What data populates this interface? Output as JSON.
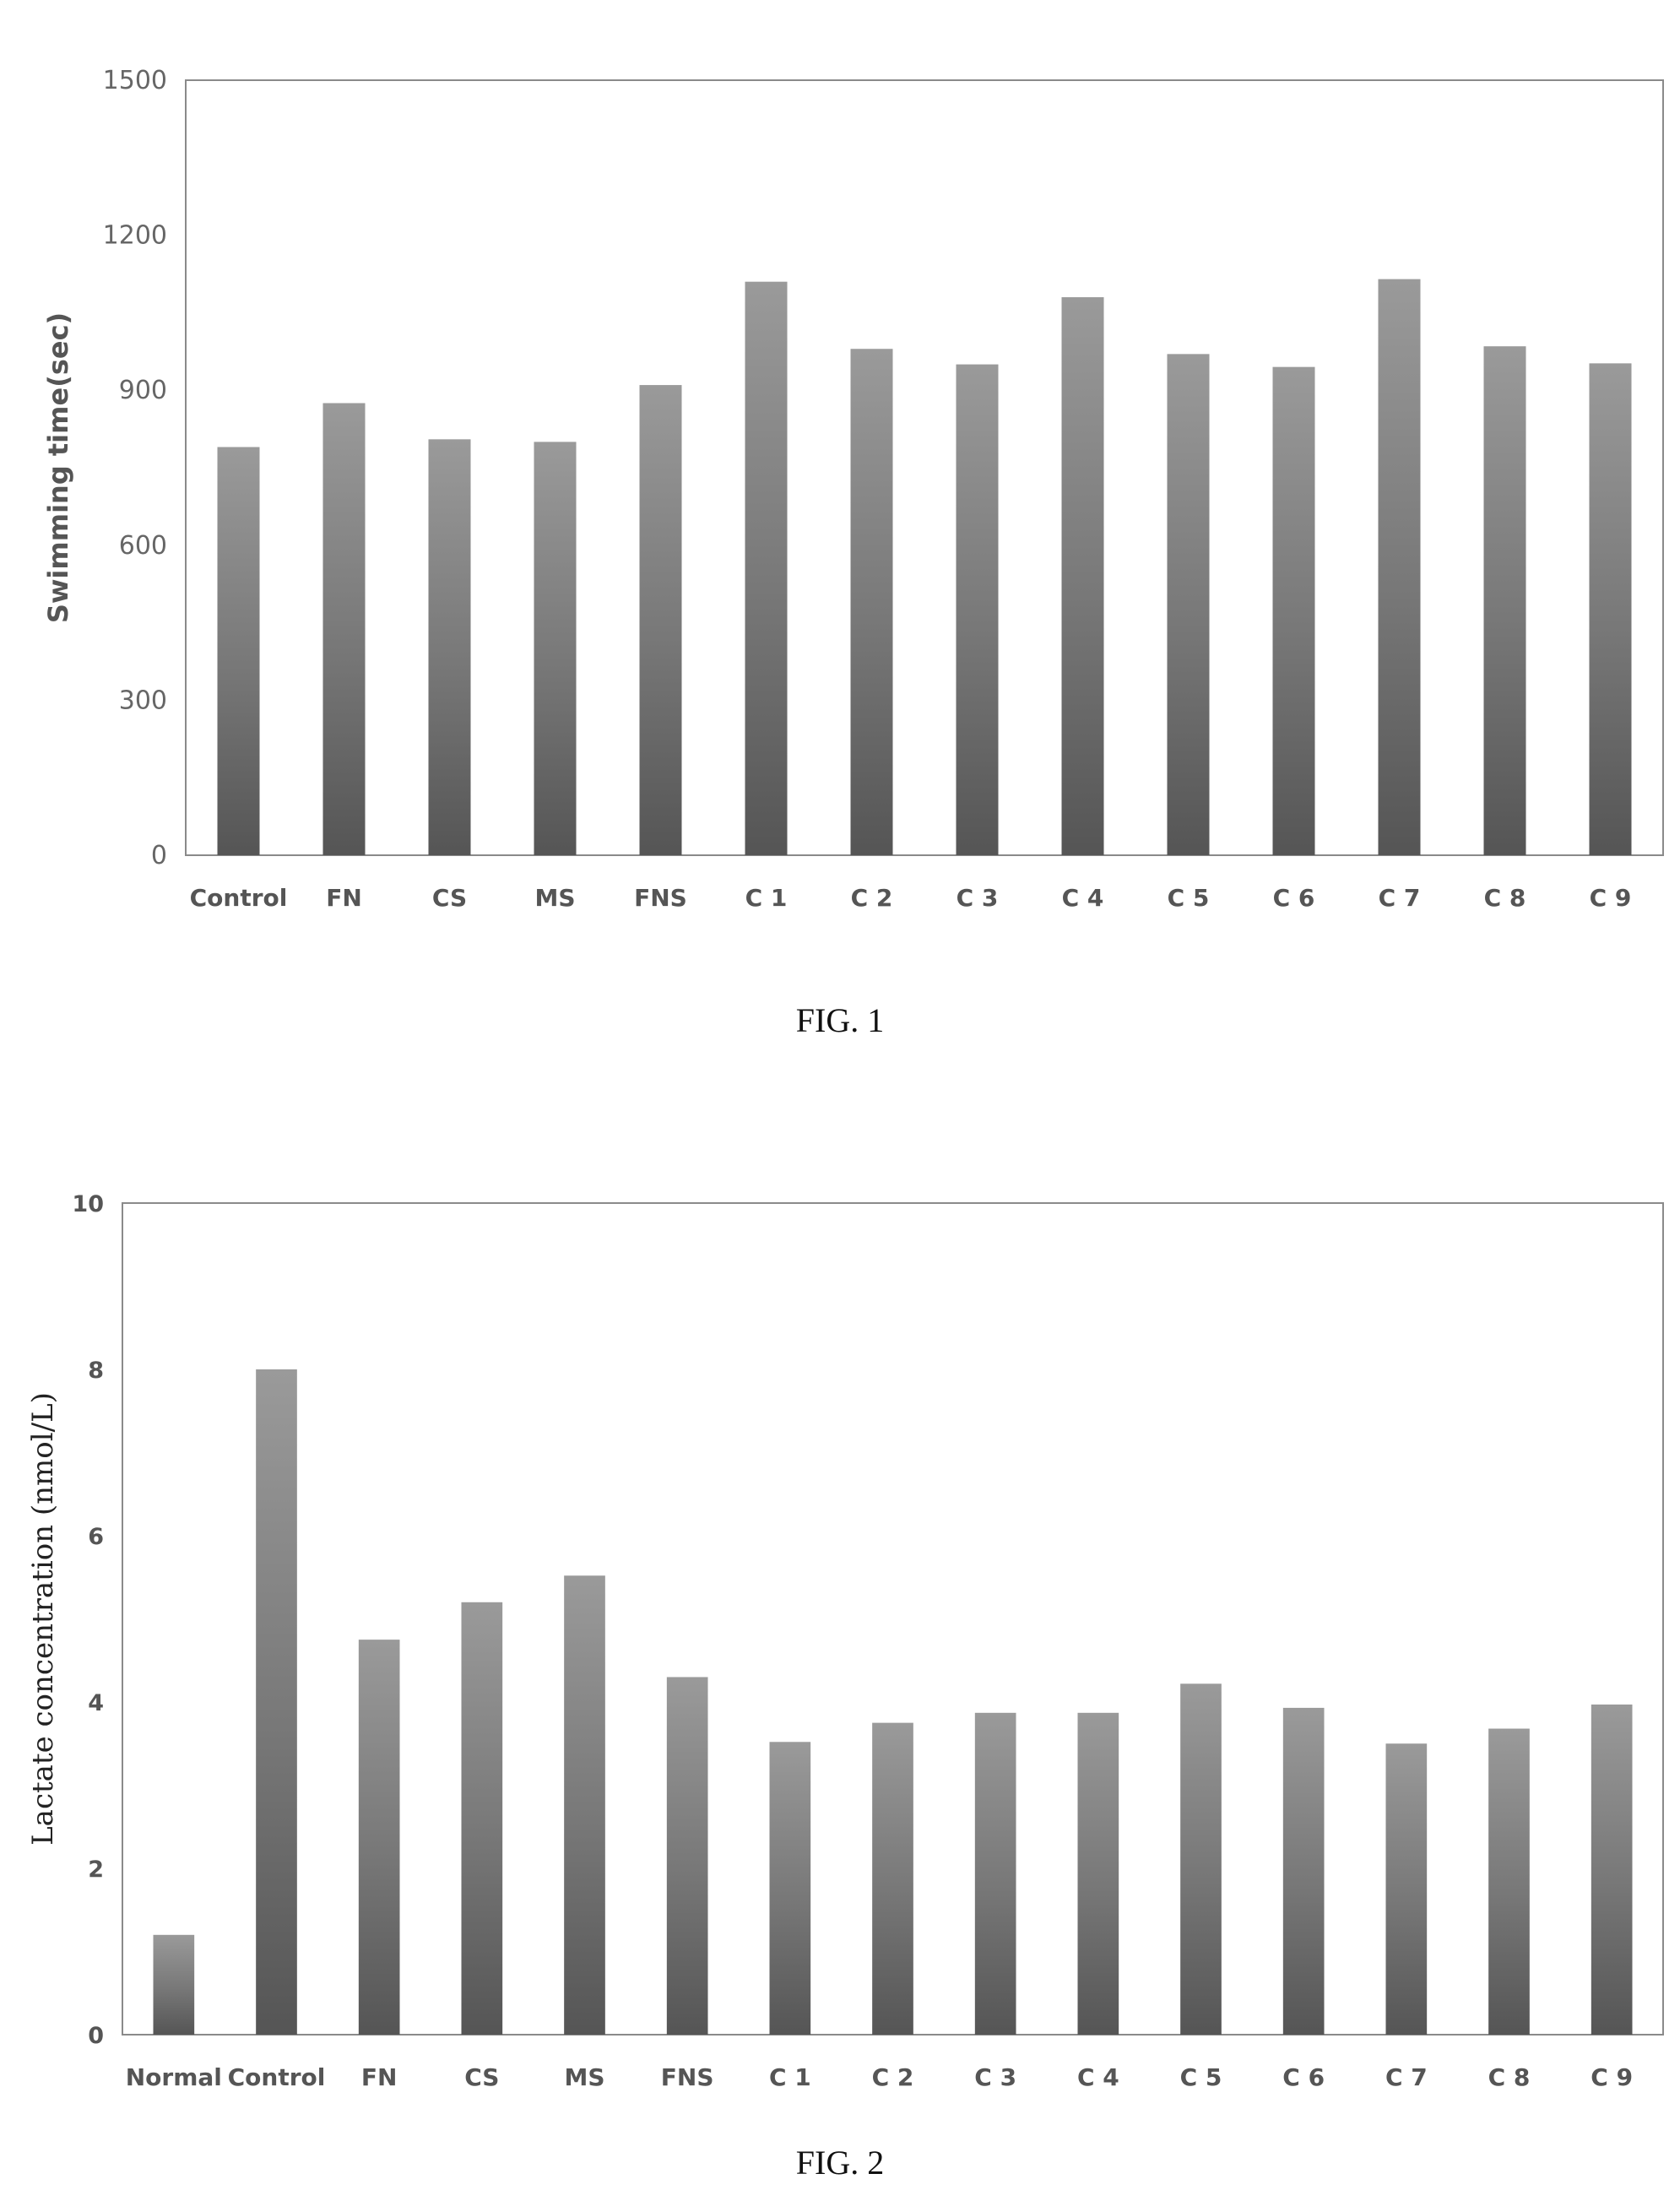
{
  "chart_data": [
    {
      "type": "bar",
      "caption": "FIG. 1",
      "ylabel": "Swimming time(sec)",
      "xlabel": "",
      "ylim": [
        0,
        1500
      ],
      "yticks": [
        "0",
        "300",
        "600",
        "900",
        "1200",
        "1500"
      ],
      "categories": [
        "Control",
        "FN",
        "CS",
        "MS",
        "FNS",
        "C 1",
        "C 2",
        "C 3",
        "C 4",
        "C 5",
        "C 6",
        "C 7",
        "C 8",
        "C 9"
      ],
      "values": [
        790,
        875,
        805,
        800,
        910,
        1110,
        980,
        950,
        1080,
        970,
        945,
        1115,
        985,
        952
      ],
      "grid": false,
      "bar_color": "#777777"
    },
    {
      "type": "bar",
      "caption": "FIG. 2",
      "ylabel": "Lactate concentration  (nmol/L)",
      "xlabel": "",
      "ylim": [
        0,
        10
      ],
      "yticks": [
        "0",
        "2",
        "4",
        "6",
        "8",
        "10"
      ],
      "categories": [
        "Normal",
        "Control",
        "FN",
        "CS",
        "MS",
        "FNS",
        "C 1",
        "C 2",
        "C 3",
        "C 4",
        "C 5",
        "C 6",
        "C 7",
        "C 8",
        "C 9"
      ],
      "values": [
        1.2,
        8.0,
        4.75,
        5.2,
        5.52,
        4.3,
        3.52,
        3.75,
        3.87,
        3.87,
        4.22,
        3.93,
        3.5,
        3.68,
        3.97
      ],
      "grid": false,
      "bar_color": "#777777"
    }
  ]
}
